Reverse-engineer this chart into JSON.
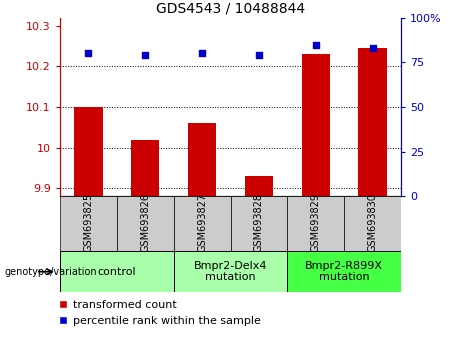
{
  "title": "GDS4543 / 10488844",
  "categories": [
    "GSM693825",
    "GSM693826",
    "GSM693827",
    "GSM693828",
    "GSM693829",
    "GSM693830"
  ],
  "red_values": [
    10.1,
    10.02,
    10.06,
    9.93,
    10.23,
    10.245
  ],
  "blue_values": [
    80,
    79,
    80,
    79,
    85,
    83
  ],
  "left_ylim": [
    9.88,
    10.32
  ],
  "right_ylim": [
    0,
    100
  ],
  "left_yticks": [
    9.9,
    10.0,
    10.1,
    10.2,
    10.3
  ],
  "right_yticks": [
    0,
    25,
    50,
    75,
    100
  ],
  "left_yticklabels": [
    "9.9",
    "10",
    "10.1",
    "10.2",
    "10.3"
  ],
  "right_yticklabels": [
    "0",
    "25",
    "50",
    "75",
    "100%"
  ],
  "bar_color": "#cc0000",
  "point_color": "#0000cc",
  "bar_width": 0.5,
  "groups": [
    {
      "label": "control",
      "indices": [
        0,
        1
      ],
      "color": "#aaffaa"
    },
    {
      "label": "Bmpr2-Delx4\nmutation",
      "indices": [
        2,
        3
      ],
      "color": "#aaffaa"
    },
    {
      "label": "Bmpr2-R899X\nmutation",
      "indices": [
        4,
        5
      ],
      "color": "#44ff44"
    }
  ],
  "legend_red_label": "transformed count",
  "legend_blue_label": "percentile rank within the sample",
  "genotype_label": "genotype/variation",
  "title_fontsize": 10,
  "axis_fontsize": 8,
  "legend_fontsize": 8,
  "tick_label_fontsize": 7,
  "group_label_fontsize": 8
}
